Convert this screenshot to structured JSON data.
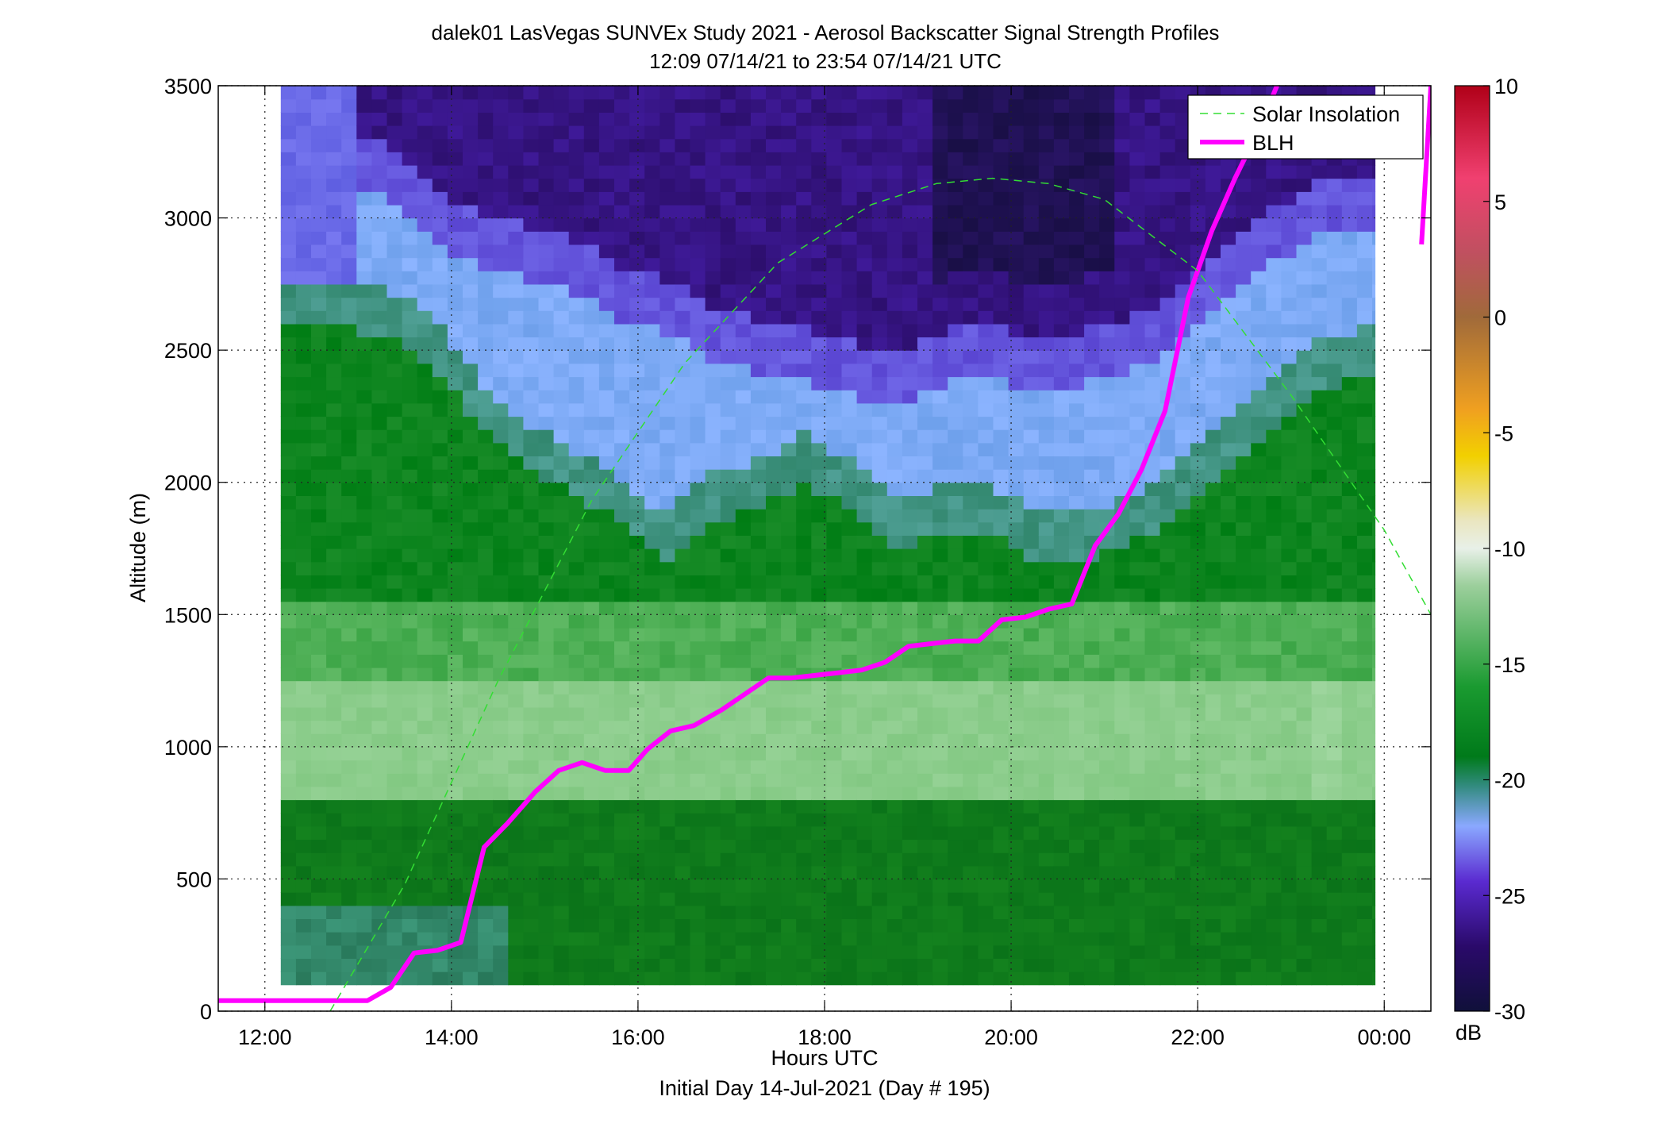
{
  "chart_data": {
    "type": "heatmap",
    "title": "dalek01 LasVegas SUNVEx Study 2021 - Aerosol Backscatter Signal Strength Profiles",
    "subtitle": "12:09 07/14/21 to 23:54 07/14/21  UTC",
    "xlabel": "Hours UTC",
    "xlabel2": "Initial Day 14-Jul-2021 (Day # 195)",
    "ylabel": "Altitude (m)",
    "xlim": [
      11.5,
      24.5
    ],
    "ylim": [
      0,
      3500
    ],
    "grid": true,
    "x_ticks": [
      12,
      14,
      16,
      18,
      20,
      22,
      24
    ],
    "x_tick_labels": [
      "12:00",
      "14:00",
      "16:00",
      "18:00",
      "20:00",
      "22:00",
      "00:00"
    ],
    "y_ticks": [
      0,
      500,
      1000,
      1500,
      2000,
      2500,
      3000,
      3500
    ],
    "y_tick_labels": [
      "0",
      "500",
      "1000",
      "1500",
      "2000",
      "2500",
      "3000",
      "3500"
    ],
    "colorbar": {
      "label": "dB",
      "range": [
        -30,
        10
      ],
      "ticks": [
        10,
        5,
        0,
        -5,
        -10,
        -15,
        -20,
        -25,
        -30
      ],
      "tick_labels": [
        "10",
        "5",
        "0",
        "-5",
        "-10",
        "-15",
        "-20",
        "-25",
        "-30"
      ]
    },
    "legend": {
      "position": "top-right",
      "entries": [
        {
          "label": "Solar Insolation",
          "color": "#33dd33",
          "style": "dashed"
        },
        {
          "label": "BLH",
          "color": "#ff00ff",
          "style": "solid"
        }
      ]
    },
    "heatmap": {
      "time_range": [
        12.17,
        23.9
      ],
      "altitude_range": [
        100,
        3500
      ],
      "units": "dB",
      "time_samples": [
        12.2,
        12.7,
        13.2,
        13.7,
        14.2,
        14.7,
        15.2,
        15.7,
        16.2,
        16.7,
        17.2,
        17.7,
        18.2,
        18.7,
        19.2,
        19.7,
        20.2,
        20.7,
        21.2,
        21.7,
        22.2,
        22.7,
        23.2,
        23.7
      ],
      "aerosol_top_m": [
        2700,
        2680,
        2650,
        2550,
        2300,
        2150,
        2050,
        1950,
        1800,
        1950,
        2000,
        2100,
        2000,
        1850,
        1900,
        1900,
        1800,
        1800,
        1850,
        2000,
        2150,
        2300,
        2450,
        2500
      ],
      "clean_layer_top_m": [
        3150,
        3100,
        3050,
        2900,
        2800,
        2750,
        2700,
        2600,
        2550,
        2450,
        2400,
        2350,
        2300,
        2250,
        2350,
        2400,
        2300,
        2350,
        2400,
        2500,
        2650,
        2800,
        2900,
        2950
      ]
    },
    "series": [
      {
        "name": "BLH",
        "x": [
          11.5,
          12.0,
          12.5,
          13.1,
          13.35,
          13.6,
          13.85,
          14.1,
          14.35,
          14.6,
          14.9,
          15.15,
          15.4,
          15.65,
          15.9,
          16.1,
          16.35,
          16.6,
          16.9,
          17.15,
          17.4,
          17.65,
          17.9,
          18.15,
          18.4,
          18.65,
          18.9,
          19.15,
          19.4,
          19.65,
          19.9,
          20.15,
          20.4,
          20.65,
          20.9,
          21.15,
          21.4,
          21.65,
          21.9,
          22.15,
          22.4,
          22.65,
          22.85
        ],
        "y": [
          40,
          40,
          40,
          40,
          90,
          220,
          230,
          260,
          620,
          710,
          830,
          910,
          940,
          910,
          910,
          990,
          1060,
          1080,
          1140,
          1200,
          1260,
          1260,
          1270,
          1280,
          1290,
          1320,
          1380,
          1390,
          1400,
          1400,
          1480,
          1490,
          1520,
          1540,
          1760,
          1880,
          2050,
          2270,
          2700,
          2950,
          3150,
          3330,
          3500
        ]
      },
      {
        "name": "BLH",
        "x": [
          24.4,
          24.5
        ],
        "y": [
          2900,
          3500
        ]
      },
      {
        "name": "Solar Insolation",
        "x": [
          12.7,
          13.5,
          14.5,
          15.5,
          16.5,
          17.5,
          18.5,
          19.2,
          19.8,
          20.4,
          21.0,
          22.0,
          23.0,
          24.0,
          24.5
        ],
        "y": [
          0,
          480,
          1250,
          1930,
          2450,
          2830,
          3050,
          3130,
          3150,
          3130,
          3070,
          2800,
          2330,
          1820,
          1500
        ]
      }
    ]
  }
}
